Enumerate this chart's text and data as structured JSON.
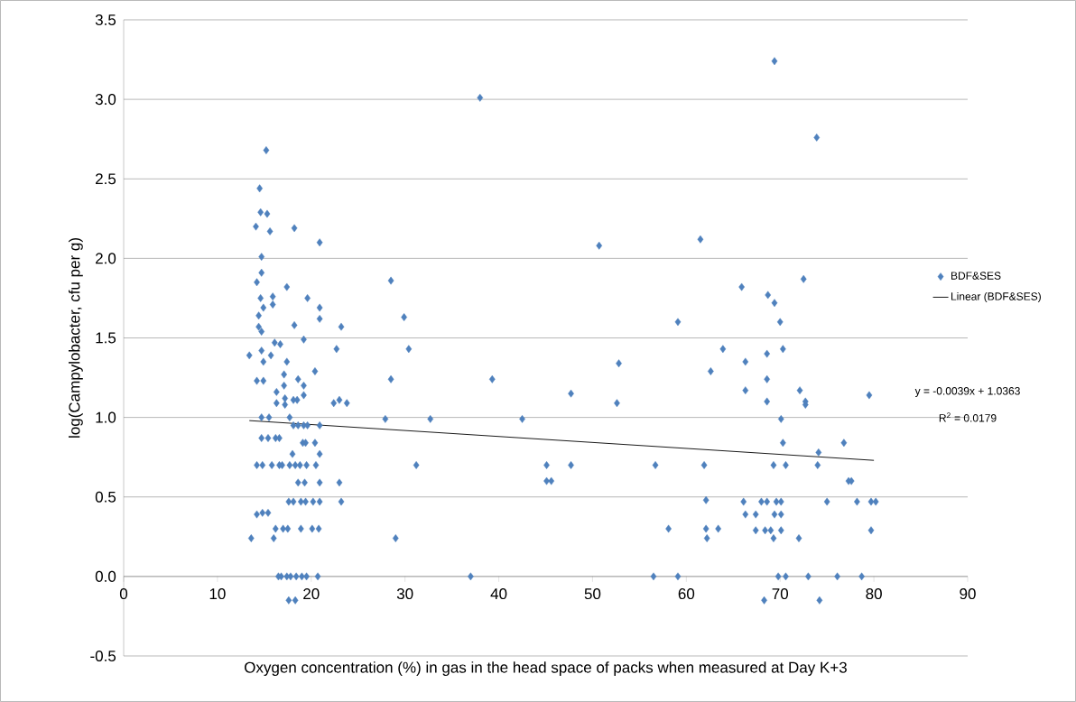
{
  "chart_data": {
    "type": "scatter",
    "xlabel": "Oxygen concentration (%) in gas in the head space of packs when measured at Day K+3",
    "ylabel": "log(Campylobacter, cfu per g)",
    "xlim": [
      0,
      90
    ],
    "xticks": [
      0,
      10,
      20,
      30,
      40,
      50,
      60,
      70,
      80,
      90
    ],
    "ylim": [
      -0.5,
      3.5
    ],
    "yticks": [
      {
        "value": -0.5,
        "label": "-0.5"
      },
      {
        "value": 0,
        "label": "0.0"
      },
      {
        "value": 0.5,
        "label": "0.5"
      },
      {
        "value": 1,
        "label": "1.0"
      },
      {
        "value": 1.5,
        "label": "1.5"
      },
      {
        "value": 2,
        "label": "2.0"
      },
      {
        "value": 2.5,
        "label": "2.5"
      },
      {
        "value": 3,
        "label": "3.0"
      },
      {
        "value": 3.5,
        "label": "3.5"
      }
    ],
    "grid": "y",
    "legend": "right",
    "annotations": [
      "y = -0.0039x + 1.0363",
      "R$^{2}$ = 0.0179"
    ],
    "series": [
      {
        "name": "BDF&SES",
        "type": "scatter",
        "color": "#4f81bd",
        "marker": "diamond",
        "x": [
          13.4,
          13.6,
          14.1,
          14.2,
          14.2,
          14.2,
          14.2,
          14.4,
          14.4,
          14.5,
          14.6,
          14.6,
          14.7,
          14.7,
          14.7,
          14.7,
          14.7,
          14.7,
          14.8,
          14.8,
          14.9,
          14.9,
          14.9,
          15.2,
          15.3,
          15.4,
          15.4,
          15.5,
          15.6,
          15.7,
          15.8,
          15.9,
          15.9,
          16.0,
          16.1,
          16.2,
          16.2,
          16.3,
          16.3,
          16.5,
          16.6,
          16.6,
          16.7,
          16.9,
          16.8,
          17.0,
          17.1,
          17.1,
          17.2,
          17.2,
          17.4,
          17.4,
          17.4,
          17.5,
          17.6,
          17.6,
          17.7,
          17.7,
          17.8,
          18.0,
          18.1,
          18.1,
          18.1,
          18.2,
          18.2,
          18.3,
          18.3,
          18.4,
          18.5,
          18.6,
          18.6,
          18.6,
          18.8,
          18.9,
          18.9,
          19.0,
          19.1,
          19.2,
          19.2,
          19.2,
          19.2,
          19.3,
          19.4,
          19.4,
          19.5,
          19.5,
          19.6,
          19.6,
          20.1,
          20.2,
          20.4,
          20.4,
          20.5,
          20.7,
          20.8,
          20.9,
          20.9,
          20.9,
          20.9,
          20.9,
          20.9,
          20.9,
          22.7,
          22.4,
          23.0,
          23.0,
          23.2,
          23.2,
          23.8,
          27.9,
          28.5,
          28.5,
          29.0,
          29.9,
          30.4,
          31.2,
          32.7,
          37.0,
          38.0,
          39.3,
          42.5,
          45.1,
          45.1,
          45.6,
          47.7,
          47.7,
          50.7,
          52.6,
          52.8,
          56.5,
          56.7,
          58.1,
          59.1,
          59.1,
          61.5,
          61.9,
          62.1,
          62.1,
          62.2,
          62.6,
          63.4,
          63.9,
          69.4,
          73.9,
          72.5,
          65.9,
          68.7,
          69.4,
          70.0,
          70.3,
          68.6,
          66.3,
          68.6,
          66.3,
          72.1,
          68.6,
          72.7,
          72.7,
          79.5,
          70.1,
          70.3,
          76.8,
          74.1,
          69.3,
          70.6,
          74.0,
          77.3,
          77.6,
          66.1,
          68.0,
          68.6,
          69.6,
          70.1,
          75.0,
          78.2,
          79.7,
          80.2,
          66.3,
          67.4,
          69.4,
          70.1,
          67.4,
          68.4,
          69.0,
          70.1,
          69.3,
          72.0,
          79.7,
          69.8,
          70.6,
          73.0,
          76.1,
          78.7,
          68.3,
          74.2
        ],
        "values": [
          1.39,
          0.24,
          2.2,
          1.85,
          1.23,
          0.39,
          0.7,
          1.64,
          1.57,
          2.44,
          2.29,
          1.75,
          2.01,
          1.91,
          1.54,
          1.42,
          1.0,
          0.87,
          0.7,
          0.4,
          1.69,
          1.35,
          1.23,
          2.68,
          2.28,
          0.87,
          0.4,
          1.0,
          2.17,
          1.39,
          0.7,
          1.76,
          1.71,
          0.24,
          1.47,
          0.3,
          0.87,
          1.16,
          1.09,
          0,
          0.7,
          0.87,
          1.46,
          0.7,
          0,
          0.3,
          1.27,
          1.2,
          1.12,
          1.08,
          1.82,
          1.35,
          0,
          0.3,
          0.47,
          -0.15,
          1.0,
          0.7,
          0,
          0.77,
          0.95,
          1.11,
          0.47,
          2.19,
          1.58,
          -0.15,
          0.7,
          0,
          1.11,
          1.24,
          0.95,
          0.59,
          0.7,
          0.47,
          0.3,
          0,
          0.84,
          1.49,
          1.2,
          1.14,
          0.95,
          0.59,
          0.84,
          0.47,
          0.7,
          0,
          1.75,
          0.95,
          0.3,
          0.47,
          1.29,
          0.84,
          0.7,
          0,
          0.3,
          2.1,
          1.69,
          1.62,
          0.95,
          0.77,
          0.59,
          0.47,
          1.43,
          1.09,
          1.11,
          0.59,
          1.57,
          0.47,
          1.09,
          0.99,
          1.86,
          1.24,
          0.24,
          1.63,
          1.43,
          0.7,
          0.99,
          0,
          3.01,
          1.24,
          0.99,
          0.7,
          0.6,
          0.6,
          1.15,
          0.7,
          2.08,
          1.09,
          1.34,
          0,
          0.7,
          0.3,
          1.6,
          0,
          2.12,
          0.7,
          0.48,
          0.3,
          0.24,
          1.29,
          0.3,
          1.43,
          3.24,
          2.76,
          1.87,
          1.82,
          1.77,
          1.72,
          1.6,
          1.43,
          1.4,
          1.35,
          1.24,
          1.17,
          1.17,
          1.1,
          1.1,
          1.08,
          1.14,
          0.99,
          0.84,
          0.84,
          0.78,
          0.7,
          0.7,
          0.7,
          0.6,
          0.6,
          0.47,
          0.47,
          0.47,
          0.47,
          0.47,
          0.47,
          0.47,
          0.47,
          0.47,
          0.39,
          0.39,
          0.39,
          0.39,
          0.29,
          0.29,
          0.29,
          0.29,
          0.24,
          0.24,
          0.29,
          0,
          0,
          0,
          0,
          0,
          -0.15,
          -0.15
        ]
      },
      {
        "name": "Linear (BDF&SES)",
        "type": "line",
        "color": "#000000",
        "marker": "none",
        "line_style": "solid",
        "x": [
          13.4,
          80.0
        ],
        "values": [
          0.98,
          0.73
        ]
      }
    ]
  }
}
